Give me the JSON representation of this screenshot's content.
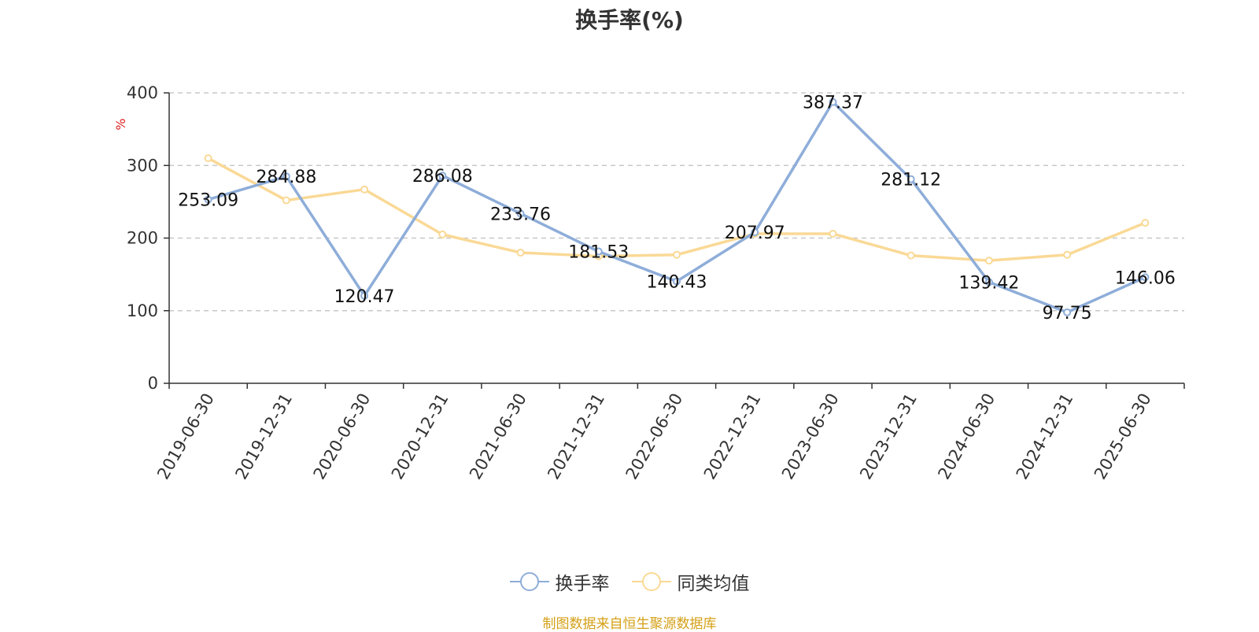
{
  "chart_data": {
    "type": "line",
    "title": "换手率(%)",
    "ylabel": "%",
    "ylim": [
      0,
      400
    ],
    "yticks": [
      0,
      100,
      200,
      300,
      400
    ],
    "grid": true,
    "legend_position": "bottom",
    "categories": [
      "2019-06-30",
      "2019-12-31",
      "2020-06-30",
      "2020-12-31",
      "2021-06-30",
      "2021-12-31",
      "2022-06-30",
      "2022-12-31",
      "2023-06-30",
      "2023-12-31",
      "2024-06-30",
      "2024-12-31",
      "2025-06-30"
    ],
    "series": [
      {
        "name": "换手率",
        "color": "#8eadd9",
        "values": [
          253.09,
          284.88,
          120.47,
          286.08,
          233.76,
          181.53,
          140.43,
          207.97,
          387.37,
          281.12,
          139.42,
          97.75,
          146.06
        ],
        "labels": [
          "253.09",
          "284.88",
          "120.47",
          "286.08",
          "233.76",
          "181.53",
          "140.43",
          "207.97",
          "387.37",
          "281.12",
          "139.42",
          "97.75",
          "146.06"
        ]
      },
      {
        "name": "同类均值",
        "color": "#fad996",
        "values": [
          310,
          252,
          267,
          205,
          180,
          175,
          177,
          206,
          206,
          176,
          169,
          177,
          221
        ]
      }
    ]
  },
  "source_note": "制图数据来自恒生聚源数据库"
}
